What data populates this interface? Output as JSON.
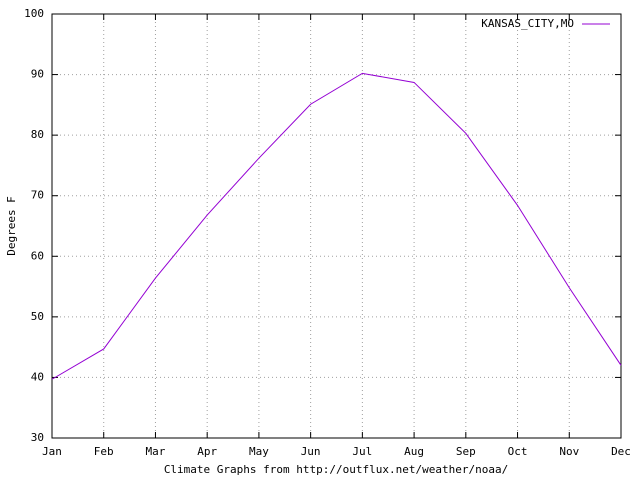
{
  "chart_data": {
    "type": "line",
    "ylabel": "Degrees F",
    "xlabel": "Climate Graphs from http://outflux.net/weather/noaa/",
    "categories": [
      "Jan",
      "Feb",
      "Mar",
      "Apr",
      "May",
      "Jun",
      "Jul",
      "Aug",
      "Sep",
      "Oct",
      "Nov",
      "Dec"
    ],
    "series": [
      {
        "name": "KANSAS_CITY,MO",
        "color": "#9400d3",
        "values": [
          39.7,
          44.7,
          56.4,
          66.8,
          76.2,
          85.1,
          90.2,
          88.7,
          80.3,
          68.4,
          54.8,
          42.0
        ]
      }
    ],
    "ylim": [
      30,
      100
    ],
    "yticks": [
      30,
      40,
      50,
      60,
      70,
      80,
      90,
      100
    ],
    "grid": true,
    "legend": "upper right"
  }
}
